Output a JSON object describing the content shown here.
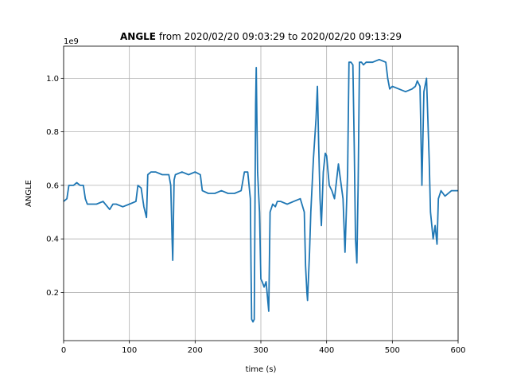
{
  "chart_data": {
    "type": "line",
    "title_bold": "ANGLE",
    "title_rest": " from 2020/02/20 09:03:29 to 2020/02/20 09:13:29",
    "xlabel": "time (s)",
    "ylabel": "ANGLE",
    "y_offset_label": "1e9",
    "xlim": [
      0,
      600
    ],
    "ylim": [
      0.02,
      1.12
    ],
    "xticks": [
      0,
      100,
      200,
      300,
      400,
      500,
      600
    ],
    "xtick_labels": [
      "0",
      "100",
      "200",
      "300",
      "400",
      "500",
      "600"
    ],
    "yticks": [
      0.2,
      0.4,
      0.6,
      0.8,
      1.0
    ],
    "ytick_labels": [
      "0.2",
      "0.4",
      "0.6",
      "0.8",
      "1.0"
    ],
    "grid": true,
    "line_color": "#1f77b4",
    "series": [
      {
        "x": [
          0,
          5,
          8,
          10,
          15,
          20,
          25,
          30,
          33,
          36,
          40,
          50,
          60,
          70,
          75,
          80,
          90,
          100,
          110,
          113,
          118,
          122,
          126,
          128,
          133,
          136,
          140,
          150,
          160,
          163,
          165,
          166,
          168,
          170,
          180,
          190,
          200,
          208,
          211,
          220,
          230,
          240,
          250,
          260,
          270,
          275,
          280,
          284,
          285,
          286,
          288,
          290,
          292,
          293,
          294,
          295,
          296,
          298,
          300,
          302,
          305,
          308,
          312,
          314,
          318,
          322,
          325,
          330,
          340,
          350,
          360,
          366,
          368,
          370,
          371,
          374,
          376,
          380,
          384,
          386,
          388,
          390,
          392,
          395,
          398,
          400,
          404,
          408,
          412,
          418,
          425,
          428,
          432,
          434,
          437,
          440,
          442,
          444,
          446,
          448,
          450,
          453,
          456,
          460,
          470,
          480,
          490,
          493,
          496,
          500,
          510,
          520,
          530,
          535,
          538,
          542,
          545,
          548,
          552,
          556,
          558,
          562,
          565,
          568,
          570,
          574,
          580,
          590,
          600
        ],
        "y": [
          0.54,
          0.55,
          0.6,
          0.6,
          0.6,
          0.61,
          0.6,
          0.6,
          0.55,
          0.53,
          0.53,
          0.53,
          0.54,
          0.51,
          0.53,
          0.53,
          0.52,
          0.53,
          0.54,
          0.6,
          0.59,
          0.52,
          0.48,
          0.64,
          0.65,
          0.65,
          0.65,
          0.64,
          0.64,
          0.6,
          0.4,
          0.32,
          0.62,
          0.64,
          0.65,
          0.64,
          0.65,
          0.64,
          0.58,
          0.57,
          0.57,
          0.58,
          0.57,
          0.57,
          0.58,
          0.65,
          0.65,
          0.55,
          0.3,
          0.1,
          0.09,
          0.1,
          0.9,
          1.04,
          0.85,
          0.65,
          0.6,
          0.5,
          0.25,
          0.24,
          0.22,
          0.24,
          0.13,
          0.5,
          0.53,
          0.52,
          0.54,
          0.54,
          0.53,
          0.54,
          0.55,
          0.5,
          0.3,
          0.2,
          0.17,
          0.35,
          0.5,
          0.7,
          0.85,
          0.97,
          0.75,
          0.55,
          0.45,
          0.65,
          0.72,
          0.71,
          0.6,
          0.58,
          0.55,
          0.68,
          0.55,
          0.35,
          0.65,
          1.06,
          1.06,
          1.05,
          0.75,
          0.4,
          0.31,
          0.6,
          1.06,
          1.06,
          1.05,
          1.06,
          1.06,
          1.07,
          1.06,
          1.0,
          0.96,
          0.97,
          0.96,
          0.95,
          0.96,
          0.97,
          0.99,
          0.97,
          0.6,
          0.95,
          1.0,
          0.7,
          0.5,
          0.4,
          0.45,
          0.38,
          0.55,
          0.58,
          0.56,
          0.58,
          0.58
        ]
      }
    ]
  }
}
